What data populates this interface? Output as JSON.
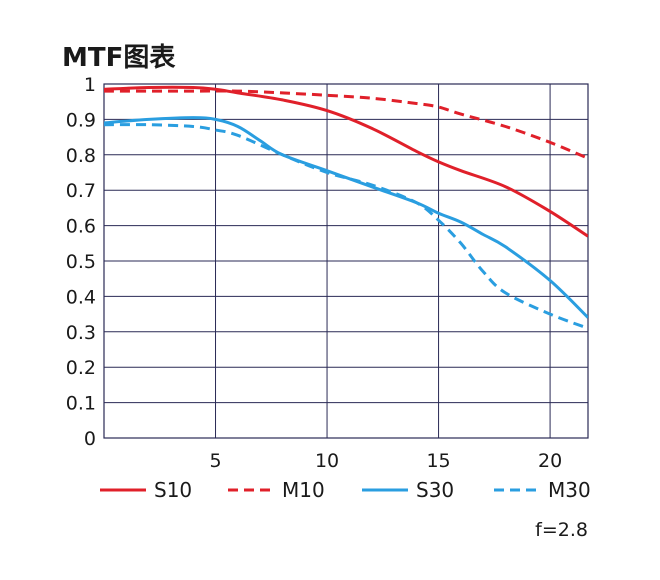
{
  "chart_data": {
    "type": "line",
    "title": "MTF图表",
    "xlabel": "",
    "ylabel": "",
    "xlim": [
      0,
      21.7
    ],
    "ylim": [
      0,
      1
    ],
    "x_ticks": [
      "5",
      "10",
      "15",
      "20"
    ],
    "x_tick_values": [
      5,
      10,
      15,
      20
    ],
    "y_ticks": [
      "1",
      "0.9",
      "0.8",
      "0.7",
      "0.6",
      "0.5",
      "0.4",
      "0.3",
      "0.2",
      "0.1",
      "0"
    ],
    "y_tick_values": [
      1,
      0.9,
      0.8,
      0.7,
      0.6,
      0.5,
      0.4,
      0.3,
      0.2,
      0.1,
      0
    ],
    "grid": true,
    "legend_position": "bottom",
    "annotation": "f=2.8",
    "series": [
      {
        "name": "S10",
        "color": "#e0202a",
        "style": "solid",
        "x": [
          0,
          2,
          4,
          5,
          6,
          8,
          10,
          12,
          14,
          15,
          16,
          18,
          20,
          21.7
        ],
        "y": [
          0.985,
          0.99,
          0.99,
          0.985,
          0.975,
          0.955,
          0.925,
          0.875,
          0.81,
          0.78,
          0.755,
          0.71,
          0.64,
          0.57
        ]
      },
      {
        "name": "M10",
        "color": "#e0202a",
        "style": "dashed",
        "x": [
          0,
          2,
          4,
          6,
          8,
          10,
          12,
          14,
          15,
          16,
          18,
          20,
          21.7
        ],
        "y": [
          0.98,
          0.98,
          0.98,
          0.98,
          0.975,
          0.968,
          0.96,
          0.945,
          0.935,
          0.915,
          0.88,
          0.835,
          0.79
        ]
      },
      {
        "name": "S30",
        "color": "#2a9ee0",
        "style": "solid",
        "x": [
          0,
          2,
          4,
          5,
          6,
          7,
          8,
          10,
          12,
          14,
          15,
          16,
          17,
          18,
          20,
          21.7
        ],
        "y": [
          0.89,
          0.9,
          0.905,
          0.9,
          0.88,
          0.84,
          0.8,
          0.755,
          0.71,
          0.665,
          0.635,
          0.61,
          0.575,
          0.54,
          0.445,
          0.34
        ]
      },
      {
        "name": "M30",
        "color": "#2a9ee0",
        "style": "dashed",
        "x": [
          0,
          2,
          4,
          5,
          6,
          8,
          10,
          12,
          14,
          15,
          16,
          17,
          18,
          20,
          21.7
        ],
        "y": [
          0.885,
          0.885,
          0.88,
          0.87,
          0.855,
          0.8,
          0.75,
          0.715,
          0.665,
          0.615,
          0.55,
          0.47,
          0.41,
          0.35,
          0.31
        ]
      }
    ]
  }
}
